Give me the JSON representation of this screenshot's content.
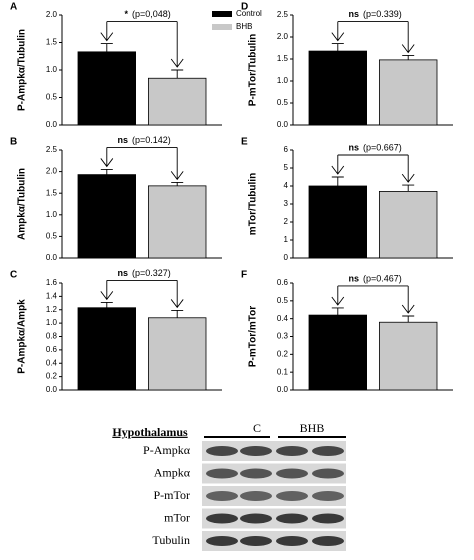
{
  "chart_data": [
    {
      "type": "bar",
      "panel_label": "A",
      "ylabel": "P-Ampkα/Tubulin",
      "legend": "upper right",
      "ylim": [
        0,
        2
      ],
      "yticks": [
        {
          "value": 0,
          "label": "0.0"
        },
        {
          "value": 0.5,
          "label": "0.5"
        },
        {
          "value": 1,
          "label": "1.0"
        },
        {
          "value": 1.5,
          "label": "1.5"
        },
        {
          "value": 2,
          "label": "2.0"
        }
      ],
      "series": [
        {
          "name": "Control",
          "color": "#000000",
          "values": [
            1.33
          ],
          "errors": [
            0.15
          ]
        },
        {
          "name": "BHB",
          "color": "#c8c8c8",
          "values": [
            0.85
          ],
          "errors": [
            0.15
          ]
        }
      ],
      "significance": "*",
      "p_text": "(p=0,048)"
    },
    {
      "type": "bar",
      "panel_label": "B",
      "ylabel": "Ampkα/Tubulin",
      "ylim": [
        0,
        2.5
      ],
      "yticks": [
        {
          "value": 0,
          "label": "0.0"
        },
        0.5,
        {
          "value": 1,
          "label": "1.0"
        },
        1.5,
        {
          "value": 2,
          "label": "2.0"
        },
        2.5
      ],
      "series": [
        {
          "color": "#000000",
          "values": [
            1.93
          ],
          "errors": [
            0.12
          ]
        },
        {
          "color": "#c8c8c8",
          "values": [
            1.67
          ],
          "errors": [
            0.08
          ]
        }
      ],
      "significance": "ns",
      "p_text": "(p=0.142)"
    },
    {
      "type": "bar",
      "panel_label": "C",
      "ylabel": "P-Ampkα/Ampk",
      "ylim": [
        0,
        1.6
      ],
      "yticks": [
        {
          "value": 0,
          "label": "0.0"
        },
        0.2,
        0.4,
        0.6,
        0.8,
        {
          "value": 1,
          "label": "1.0"
        },
        1.2,
        1.4,
        1.6
      ],
      "series": [
        {
          "color": "#000000",
          "values": [
            1.23
          ],
          "errors": [
            0.08
          ]
        },
        {
          "color": "#c8c8c8",
          "values": [
            1.08
          ],
          "errors": [
            0.11
          ]
        }
      ],
      "significance": "ns",
      "p_text": "(p=0.327)"
    },
    {
      "type": "bar",
      "panel_label": "D",
      "ylabel": "P-mTor/Tubulin",
      "ylim": [
        0,
        2.5
      ],
      "yticks": [
        {
          "value": 0,
          "label": "0.0"
        },
        0.5,
        {
          "value": 1,
          "label": "1.0"
        },
        1.5,
        {
          "value": 2,
          "label": "2.0"
        },
        2.5
      ],
      "series": [
        {
          "color": "#000000",
          "values": [
            1.68
          ],
          "errors": [
            0.17
          ]
        },
        {
          "color": "#c8c8c8",
          "values": [
            1.48
          ],
          "errors": [
            0.1
          ]
        }
      ],
      "significance": "ns",
      "p_text": "(p=0.339)"
    },
    {
      "type": "bar",
      "panel_label": "E",
      "ylabel": "mTor/Tubulin",
      "ylim": [
        0,
        6
      ],
      "yticks": [
        0,
        1,
        2,
        3,
        4,
        5,
        6
      ],
      "series": [
        {
          "color": "#000000",
          "values": [
            4.0
          ],
          "errors": [
            0.5
          ]
        },
        {
          "color": "#c8c8c8",
          "values": [
            3.7
          ],
          "errors": [
            0.35
          ]
        }
      ],
      "significance": "ns",
      "p_text": "(p=0.667)"
    },
    {
      "type": "bar",
      "panel_label": "F",
      "ylabel": "P-mTor/mTor",
      "ylim": [
        0,
        0.6
      ],
      "yticks": [
        {
          "value": 0,
          "label": "0.0"
        },
        0.1,
        0.2,
        0.3,
        0.4,
        0.5,
        0.6
      ],
      "series": [
        {
          "color": "#000000",
          "values": [
            0.42
          ],
          "errors": [
            0.04
          ]
        },
        {
          "color": "#c8c8c8",
          "values": [
            0.38
          ],
          "errors": [
            0.035
          ]
        }
      ],
      "significance": "ns",
      "p_text": "(p=0.467)"
    }
  ],
  "blot": {
    "title": "Hypothalamus",
    "groups": [
      "C",
      "BHB"
    ],
    "rows": [
      "P-Ampkα",
      "Ampkα",
      "P-mTor",
      "mTor",
      "Tubulin"
    ]
  }
}
